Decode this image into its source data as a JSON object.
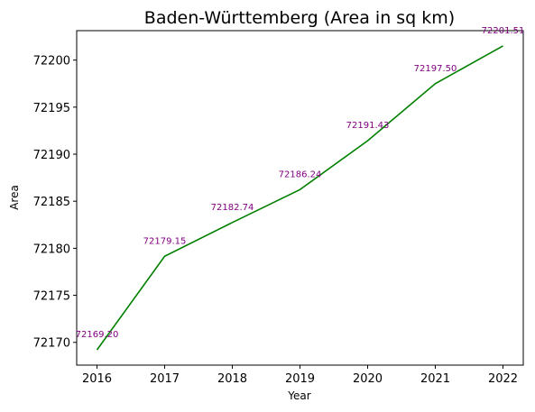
{
  "chart_data": {
    "type": "line",
    "title": "Baden-Württemberg (Area in sq km)",
    "xlabel": "Year",
    "ylabel": "Area",
    "x": [
      2016,
      2017,
      2018,
      2019,
      2020,
      2021,
      2022
    ],
    "xticks": [
      "2016",
      "2017",
      "2018",
      "2019",
      "2020",
      "2021",
      "2022"
    ],
    "yticks": [
      "72170",
      "72175",
      "72180",
      "72185",
      "72190",
      "72195",
      "72200"
    ],
    "series": [
      {
        "values": [
          72169.2,
          72179.15,
          72182.74,
          72186.24,
          72191.43,
          72197.5,
          72201.51
        ],
        "data_labels": [
          "72169.20",
          "72179.15",
          "72182.74",
          "72186.24",
          "72191.43",
          "72197.50",
          "72201.51"
        ],
        "color": "#008000",
        "label_color": "#800080"
      }
    ],
    "xlim": [
      2015.7,
      2022.3
    ],
    "ylim": [
      72167.58,
      72203.13
    ],
    "grid": false,
    "legend": "none"
  }
}
